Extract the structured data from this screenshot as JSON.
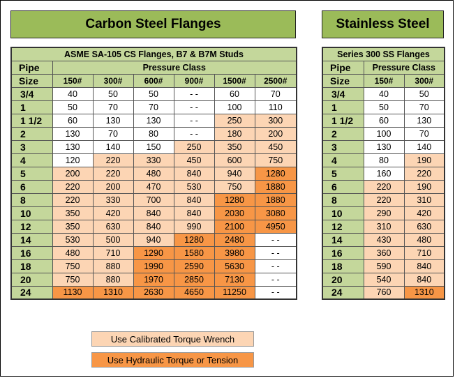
{
  "titles": {
    "carbon": "Carbon Steel Flanges",
    "stainless": "Stainless Steel"
  },
  "carbon_table": {
    "title": "ASME SA-105 CS Flanges, B7 & B7M Studs",
    "pipe_label": "Pipe",
    "size_label": "Size",
    "pressure_label": "Pressure Class",
    "classes": [
      "150#",
      "300#",
      "600#",
      "900#",
      "1500#",
      "2500#"
    ],
    "rows": [
      {
        "size": "3/4",
        "v": [
          "40",
          "50",
          "50",
          "- -",
          "60",
          "70"
        ],
        "s": [
          "w",
          "w",
          "w",
          "w",
          "w",
          "w"
        ]
      },
      {
        "size": "1",
        "v": [
          "50",
          "70",
          "70",
          "- -",
          "100",
          "110"
        ],
        "s": [
          "w",
          "w",
          "w",
          "w",
          "w",
          "w"
        ]
      },
      {
        "size": "1 1/2",
        "v": [
          "60",
          "130",
          "130",
          "- -",
          "250",
          "300"
        ],
        "s": [
          "w",
          "w",
          "w",
          "w",
          "l",
          "l"
        ]
      },
      {
        "size": "2",
        "v": [
          "130",
          "70",
          "80",
          "- -",
          "180",
          "200"
        ],
        "s": [
          "w",
          "w",
          "w",
          "w",
          "l",
          "l"
        ]
      },
      {
        "size": "3",
        "v": [
          "130",
          "140",
          "150",
          "250",
          "350",
          "450"
        ],
        "s": [
          "w",
          "w",
          "w",
          "l",
          "l",
          "l"
        ]
      },
      {
        "size": "4",
        "v": [
          "120",
          "220",
          "330",
          "450",
          "600",
          "750"
        ],
        "s": [
          "w",
          "l",
          "l",
          "l",
          "l",
          "l"
        ]
      },
      {
        "size": "5",
        "v": [
          "200",
          "220",
          "480",
          "840",
          "940",
          "1280"
        ],
        "s": [
          "l",
          "l",
          "l",
          "l",
          "l",
          "d"
        ]
      },
      {
        "size": "6",
        "v": [
          "220",
          "200",
          "470",
          "530",
          "750",
          "1880"
        ],
        "s": [
          "l",
          "l",
          "l",
          "l",
          "l",
          "d"
        ]
      },
      {
        "size": "8",
        "v": [
          "220",
          "330",
          "700",
          "840",
          "1280",
          "1880"
        ],
        "s": [
          "l",
          "l",
          "l",
          "l",
          "d",
          "d"
        ]
      },
      {
        "size": "10",
        "v": [
          "350",
          "420",
          "840",
          "840",
          "2030",
          "3080"
        ],
        "s": [
          "l",
          "l",
          "l",
          "l",
          "d",
          "d"
        ]
      },
      {
        "size": "12",
        "v": [
          "350",
          "630",
          "840",
          "990",
          "2100",
          "4950"
        ],
        "s": [
          "l",
          "l",
          "l",
          "l",
          "d",
          "d"
        ]
      },
      {
        "size": "14",
        "v": [
          "530",
          "500",
          "940",
          "1280",
          "2480",
          "- -"
        ],
        "s": [
          "l",
          "l",
          "l",
          "d",
          "d",
          "w"
        ]
      },
      {
        "size": "16",
        "v": [
          "480",
          "710",
          "1290",
          "1580",
          "3980",
          "- -"
        ],
        "s": [
          "l",
          "l",
          "d",
          "d",
          "d",
          "w"
        ]
      },
      {
        "size": "18",
        "v": [
          "750",
          "880",
          "1990",
          "2590",
          "5630",
          "- -"
        ],
        "s": [
          "l",
          "l",
          "d",
          "d",
          "d",
          "w"
        ]
      },
      {
        "size": "20",
        "v": [
          "750",
          "880",
          "1970",
          "2850",
          "7130",
          "- -"
        ],
        "s": [
          "l",
          "l",
          "d",
          "d",
          "d",
          "w"
        ]
      },
      {
        "size": "24",
        "v": [
          "1130",
          "1310",
          "2630",
          "4650",
          "11250",
          "- -"
        ],
        "s": [
          "d",
          "d",
          "d",
          "d",
          "d",
          "w"
        ]
      }
    ]
  },
  "stainless_table": {
    "title": "Series 300 SS Flanges",
    "pipe_label": "Pipe",
    "size_label": "Size",
    "pressure_label": "Pressure Class",
    "classes": [
      "150#",
      "300#"
    ],
    "rows": [
      {
        "size": "3/4",
        "v": [
          "40",
          "50"
        ],
        "s": [
          "w",
          "w"
        ]
      },
      {
        "size": "1",
        "v": [
          "50",
          "70"
        ],
        "s": [
          "w",
          "w"
        ]
      },
      {
        "size": "1 1/2",
        "v": [
          "60",
          "130"
        ],
        "s": [
          "w",
          "w"
        ]
      },
      {
        "size": "2",
        "v": [
          "100",
          "70"
        ],
        "s": [
          "w",
          "w"
        ]
      },
      {
        "size": "3",
        "v": [
          "130",
          "140"
        ],
        "s": [
          "w",
          "w"
        ]
      },
      {
        "size": "4",
        "v": [
          "80",
          "190"
        ],
        "s": [
          "w",
          "l"
        ]
      },
      {
        "size": "5",
        "v": [
          "160",
          "220"
        ],
        "s": [
          "w",
          "l"
        ]
      },
      {
        "size": "6",
        "v": [
          "220",
          "190"
        ],
        "s": [
          "l",
          "l"
        ]
      },
      {
        "size": "8",
        "v": [
          "220",
          "310"
        ],
        "s": [
          "l",
          "l"
        ]
      },
      {
        "size": "10",
        "v": [
          "290",
          "420"
        ],
        "s": [
          "l",
          "l"
        ]
      },
      {
        "size": "12",
        "v": [
          "310",
          "630"
        ],
        "s": [
          "l",
          "l"
        ]
      },
      {
        "size": "14",
        "v": [
          "430",
          "480"
        ],
        "s": [
          "l",
          "l"
        ]
      },
      {
        "size": "16",
        "v": [
          "360",
          "710"
        ],
        "s": [
          "l",
          "l"
        ]
      },
      {
        "size": "18",
        "v": [
          "590",
          "840"
        ],
        "s": [
          "l",
          "l"
        ]
      },
      {
        "size": "20",
        "v": [
          "540",
          "840"
        ],
        "s": [
          "l",
          "l"
        ]
      },
      {
        "size": "24",
        "v": [
          "760",
          "1310"
        ],
        "s": [
          "l",
          "d"
        ]
      }
    ]
  },
  "legend": {
    "calibrated": "Use  Calibrated Torque Wrench",
    "hydraulic": "Use Hydraulic Torque or Tension"
  },
  "colors": {
    "header_green": "#9bbb59",
    "label_green": "#c4d79b",
    "light_orange": "#fcd5b4",
    "dark_orange": "#f79646"
  }
}
